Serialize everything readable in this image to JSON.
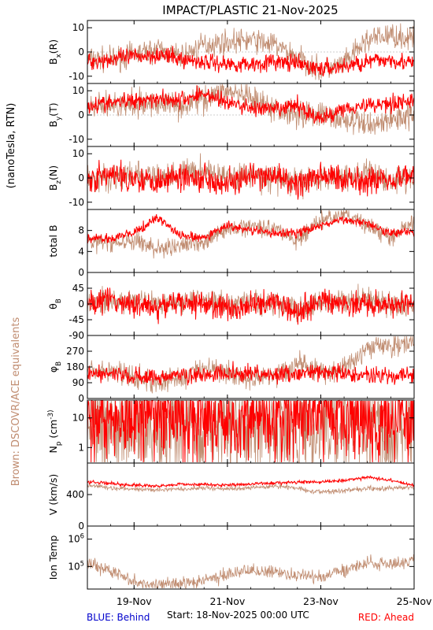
{
  "title": "IMPACT/PLASTIC   21-Nov-2025",
  "side_labels": {
    "units": "(nanoTesla, RTN)",
    "brown_note": "Brown: DSCOVR/ACE equivalents"
  },
  "footer": {
    "blue": "BLUE: Behind",
    "start": "Start: 18-Nov-2025 00:00 UTC",
    "red": "RED: Ahead"
  },
  "colors": {
    "ahead": "#ff0000",
    "ace": "#c08c70",
    "behind": "#0000cc",
    "axis": "#000000"
  },
  "chart_data": {
    "type": "line",
    "x_range_days": [
      0,
      7
    ],
    "x_ticks": [
      {
        "day": 1,
        "label": "19-Nov"
      },
      {
        "day": 3,
        "label": "21-Nov"
      },
      {
        "day": 5,
        "label": "23-Nov"
      },
      {
        "day": 7,
        "label": "25-Nov"
      }
    ],
    "panels": [
      {
        "ylabel": "B_x(R)",
        "ylim": [
          -13,
          13
        ],
        "yticks": [
          {
            "v": 10,
            "label": "10"
          },
          {
            "v": 0,
            "label": "0"
          },
          {
            "v": -10,
            "label": "-10"
          }
        ],
        "zero_line": true,
        "ahead": {
          "days": [
            0,
            0.5,
            1,
            1.5,
            2,
            2.5,
            3,
            3.5,
            4,
            4.5,
            5,
            5.5,
            6,
            6.5,
            7
          ],
          "values": [
            -4,
            -3,
            -2,
            -1,
            -3,
            -4,
            -5,
            -5,
            -4,
            -5,
            -7,
            -6,
            -4,
            -3,
            -5
          ],
          "noise": 2.5
        },
        "ace": {
          "days": [
            0,
            0.5,
            1,
            1.5,
            2,
            2.5,
            3,
            3.5,
            4,
            4.5,
            5,
            5.5,
            6,
            6.5,
            7
          ],
          "values": [
            -3,
            -3,
            -1,
            1,
            -2,
            3,
            4,
            5,
            3,
            -2,
            -8,
            -5,
            5,
            7,
            5
          ],
          "noise": 3.5
        }
      },
      {
        "ylabel": "B_y(T)",
        "ylim": [
          -13,
          13
        ],
        "yticks": [
          {
            "v": 10,
            "label": "10"
          },
          {
            "v": 0,
            "label": "0"
          },
          {
            "v": -10,
            "label": "-10"
          }
        ],
        "zero_line": true,
        "ahead": {
          "days": [
            0,
            0.5,
            1,
            1.5,
            2,
            2.5,
            3,
            3.5,
            4,
            4.5,
            5,
            5.5,
            6,
            6.5,
            7
          ],
          "values": [
            4,
            5,
            6,
            7,
            6,
            9,
            5,
            3,
            2,
            4,
            -2,
            3,
            4,
            5,
            6
          ],
          "noise": 2.5
        },
        "ace": {
          "days": [
            0,
            0.5,
            1,
            1.5,
            2,
            2.5,
            3,
            3.5,
            4,
            4.5,
            5,
            5.5,
            6,
            6.5,
            7
          ],
          "values": [
            3,
            4,
            4,
            5,
            4,
            7,
            10,
            6,
            2,
            1,
            0,
            -2,
            -4,
            -2,
            1
          ],
          "noise": 4
        }
      },
      {
        "ylabel": "B_z(N)",
        "ylim": [
          -13,
          13
        ],
        "yticks": [
          {
            "v": 10,
            "label": "10"
          },
          {
            "v": 0,
            "label": "0"
          },
          {
            "v": -10,
            "label": "-10"
          }
        ],
        "zero_line": true,
        "ahead": {
          "days": [
            0,
            0.5,
            1,
            1.5,
            2,
            2.5,
            3,
            3.5,
            4,
            4.5,
            5,
            5.5,
            6,
            6.5,
            7
          ],
          "values": [
            0,
            1,
            0,
            -1,
            1,
            0,
            -2,
            0,
            1,
            -3,
            1,
            0,
            -1,
            0,
            1
          ],
          "noise": 4
        },
        "ace": {
          "days": [
            0,
            0.5,
            1,
            1.5,
            2,
            2.5,
            3,
            3.5,
            4,
            4.5,
            5,
            5.5,
            6,
            6.5,
            7
          ],
          "values": [
            -1,
            0,
            1,
            0,
            2,
            3,
            0,
            1,
            0,
            -2,
            0,
            1,
            2,
            -1,
            0
          ],
          "noise": 4
        }
      },
      {
        "ylabel": "total B",
        "ylim": [
          0,
          12
        ],
        "yticks": [
          {
            "v": 0,
            "label": "0"
          },
          {
            "v": 4,
            "label": "4"
          },
          {
            "v": 8,
            "label": "8"
          }
        ],
        "zero_line": false,
        "ahead": {
          "days": [
            0,
            0.5,
            1,
            1.5,
            2,
            2.5,
            3,
            3.5,
            4,
            4.5,
            5,
            5.5,
            6,
            6.5,
            7
          ],
          "values": [
            6.5,
            6.5,
            7.5,
            10.5,
            7,
            6.5,
            9,
            8,
            7.5,
            7.5,
            9,
            10,
            9.5,
            7.5,
            8
          ],
          "noise": 0.6
        },
        "ace": {
          "days": [
            0,
            0.5,
            1,
            1.5,
            2,
            2.5,
            3,
            3.5,
            4,
            4.5,
            5,
            5.5,
            6,
            6.5,
            7
          ],
          "values": [
            6,
            5.5,
            6,
            4.5,
            5,
            6,
            8,
            9,
            8.5,
            6,
            10,
            11,
            9,
            6.5,
            9.5
          ],
          "noise": 1.2
        }
      },
      {
        "ylabel": "θ_B",
        "ylim": [
          -90,
          90
        ],
        "yticks": [
          {
            "v": 45,
            "label": "45"
          },
          {
            "v": 0,
            "label": "0"
          },
          {
            "v": -45,
            "label": "-45"
          },
          {
            "v": -90,
            "label": "-90"
          }
        ],
        "zero_line": true,
        "ahead": {
          "days": [
            0,
            0.5,
            1,
            1.5,
            2,
            2.5,
            3,
            3.5,
            4,
            4.5,
            5,
            5.5,
            6,
            6.5,
            7
          ],
          "values": [
            5,
            10,
            0,
            -10,
            5,
            0,
            -15,
            0,
            10,
            -20,
            10,
            5,
            -5,
            0,
            5
          ],
          "noise": 25
        },
        "ace": {
          "days": [
            0,
            0.5,
            1,
            1.5,
            2,
            2.5,
            3,
            3.5,
            4,
            4.5,
            5,
            5.5,
            6,
            6.5,
            7
          ],
          "values": [
            0,
            5,
            10,
            0,
            10,
            20,
            0,
            5,
            0,
            -10,
            0,
            10,
            15,
            -5,
            0
          ],
          "noise": 25
        }
      },
      {
        "ylabel": "φ_B",
        "ylim": [
          0,
          360
        ],
        "yticks": [
          {
            "v": 0,
            "label": "0"
          },
          {
            "v": 90,
            "label": "90"
          },
          {
            "v": 180,
            "label": "180"
          },
          {
            "v": 270,
            "label": "270"
          }
        ],
        "zero_line": false,
        "ahead": {
          "days": [
            0,
            0.5,
            1,
            1.5,
            2,
            2.5,
            3,
            3.5,
            4,
            4.5,
            5,
            5.5,
            6,
            6.5,
            7
          ],
          "values": [
            140,
            135,
            130,
            120,
            140,
            130,
            150,
            145,
            135,
            140,
            150,
            140,
            130,
            135,
            125
          ],
          "noise": 35
        },
        "ace": {
          "days": [
            0,
            0.5,
            1,
            1.5,
            2,
            2.5,
            3,
            3.5,
            4,
            4.5,
            5,
            5.5,
            6,
            6.5,
            7
          ],
          "values": [
            160,
            150,
            120,
            90,
            120,
            180,
            150,
            110,
            130,
            200,
            150,
            170,
            290,
            300,
            320
          ],
          "noise": 45
        }
      },
      {
        "ylabel": "N_p (cm^-3)",
        "log": true,
        "ylim": [
          0.3,
          40
        ],
        "yticks": [
          {
            "v": 1,
            "label": "1"
          },
          {
            "v": 10,
            "label": "10"
          }
        ],
        "zero_line": false,
        "ahead": {
          "days": [
            0,
            0.5,
            1,
            1.5,
            2,
            2.5,
            3,
            3.5,
            4,
            4.5,
            5,
            5.5,
            6,
            6.5,
            7
          ],
          "values": [
            9,
            9,
            10,
            13,
            12,
            12,
            11,
            9,
            10,
            10,
            12,
            14,
            10,
            9,
            11
          ],
          "noise": 1.5
        },
        "ace": {
          "days": [
            0,
            0.5,
            1,
            1.5,
            2,
            2.5,
            3,
            3.5,
            4,
            4.5,
            5,
            5.5,
            6,
            6.5,
            7
          ],
          "values": [
            8,
            8,
            7,
            6,
            8,
            5,
            6,
            7,
            6,
            5,
            7,
            6,
            4,
            2,
            6
          ],
          "noise": 1.8
        }
      },
      {
        "ylabel": "V (km/s)",
        "ylim": [
          0,
          800
        ],
        "yticks": [
          {
            "v": 0,
            "label": "0"
          },
          {
            "v": 400,
            "label": "400"
          }
        ],
        "zero_line": false,
        "ahead": {
          "days": [
            0,
            0.5,
            1,
            1.5,
            2,
            2.5,
            3,
            3.5,
            4,
            4.5,
            5,
            5.5,
            6,
            6.5,
            7
          ],
          "values": [
            560,
            540,
            520,
            510,
            530,
            530,
            520,
            530,
            550,
            560,
            560,
            580,
            620,
            580,
            520
          ],
          "noise": 15
        },
        "ace": {
          "days": [
            0,
            0.5,
            1,
            1.5,
            2,
            2.5,
            3,
            3.5,
            4,
            4.5,
            5,
            5.5,
            6,
            6.5,
            7
          ],
          "values": [
            520,
            480,
            470,
            460,
            470,
            480,
            470,
            480,
            510,
            480,
            430,
            450,
            480,
            480,
            500
          ],
          "noise": 20
        }
      },
      {
        "ylabel": "Ion Temp",
        "log": true,
        "ylim": [
          15000,
          3000000
        ],
        "yticks": [
          {
            "v": 100000,
            "label": "10^5"
          },
          {
            "v": 1000000,
            "label": "10^6"
          }
        ],
        "zero_line": false,
        "ahead": null,
        "ace": {
          "days": [
            0,
            0.5,
            1,
            1.5,
            2,
            2.5,
            3,
            3.5,
            4,
            4.5,
            5,
            5.5,
            6,
            6.5,
            7
          ],
          "values": [
            130000,
            60000,
            30000,
            20000,
            25000,
            30000,
            50000,
            70000,
            60000,
            50000,
            40000,
            70000,
            150000,
            120000,
            140000
          ],
          "noise": 0.25
        }
      }
    ]
  }
}
